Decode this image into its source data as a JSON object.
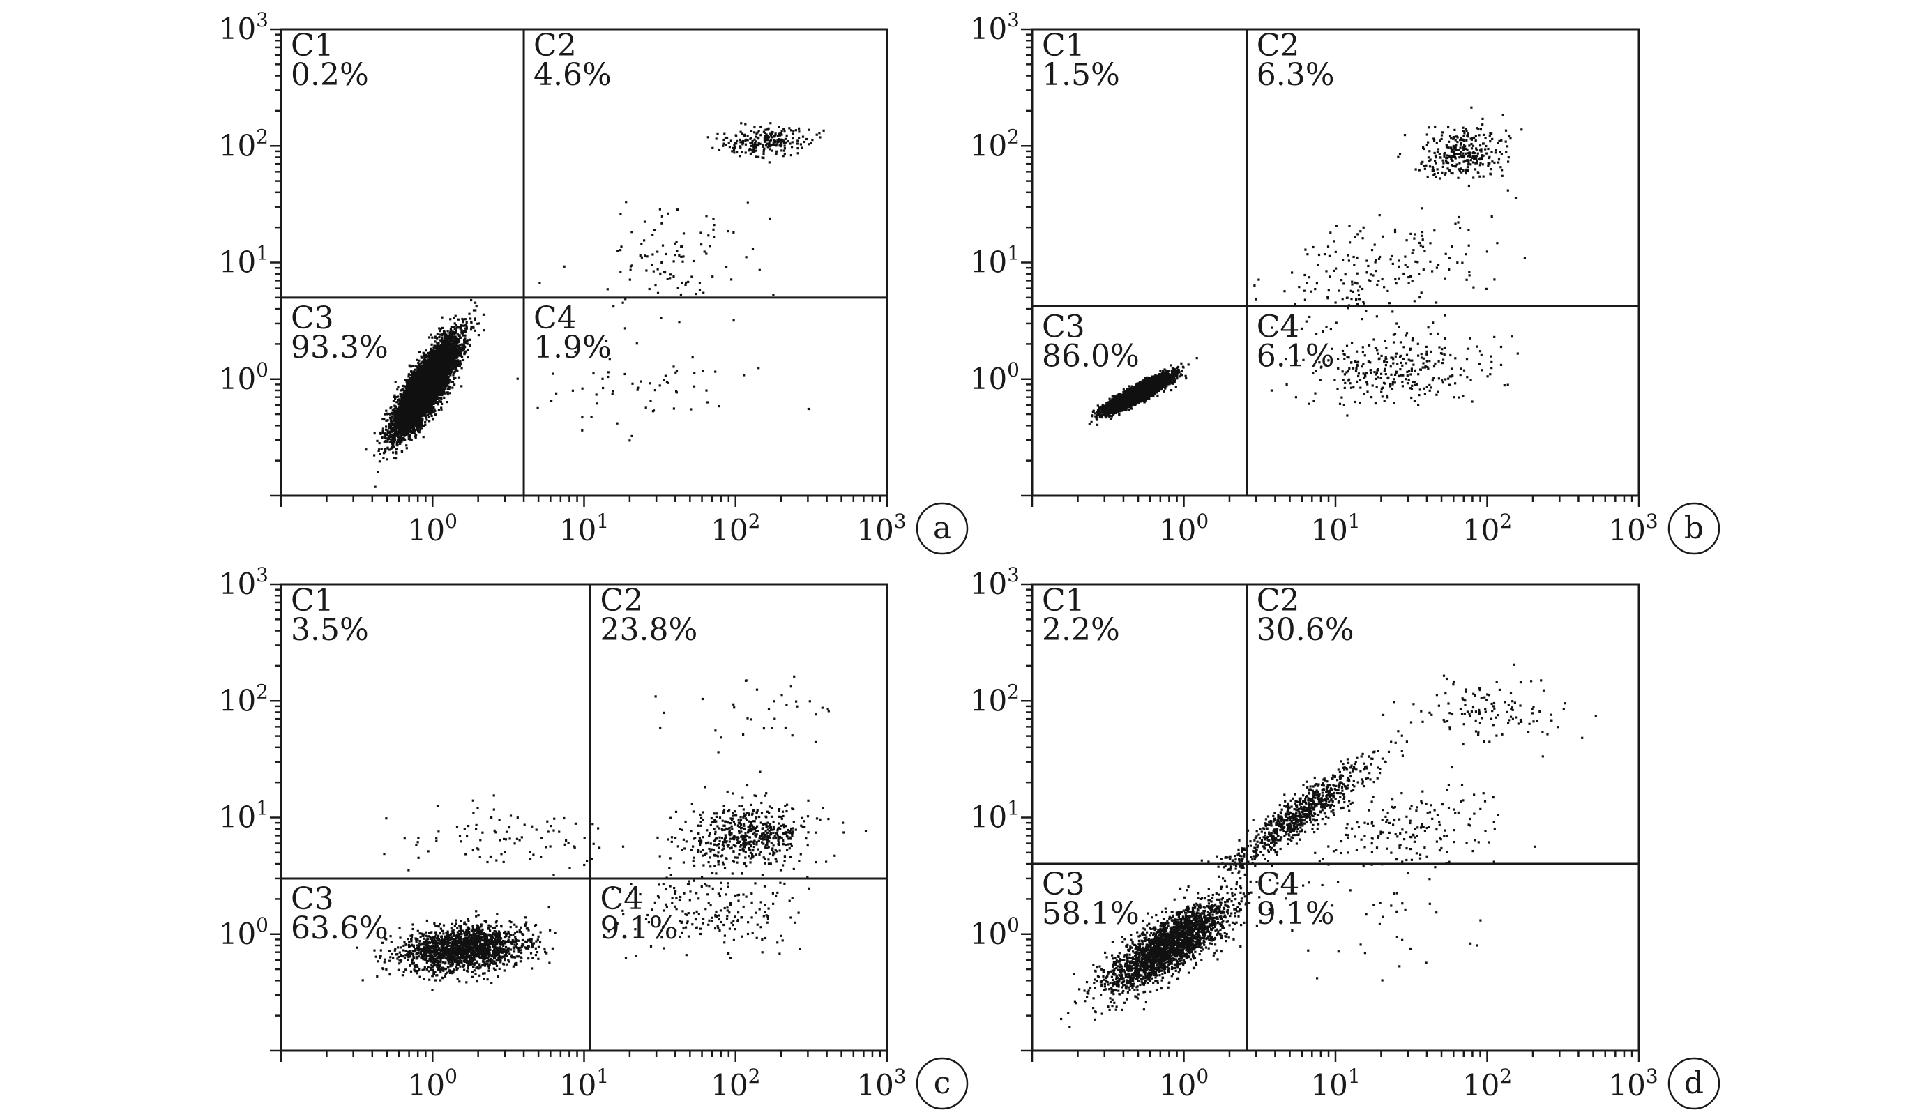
{
  "chart_data": [
    {
      "type": "scatter",
      "panel_label": "a",
      "x_scale": "log",
      "y_scale": "log",
      "xlim": [
        0.1,
        1000
      ],
      "ylim": [
        0.1,
        1000
      ],
      "x_ticks": [
        1,
        10,
        100,
        1000
      ],
      "y_ticks": [
        1,
        10,
        100,
        1000
      ],
      "tick_base": "10",
      "tick_exponents": [
        "0",
        "1",
        "2",
        "3"
      ],
      "gate": {
        "x": 4,
        "y": 5
      },
      "quadrants": [
        {
          "name": "C1",
          "percent": "0.2%"
        },
        {
          "name": "C2",
          "percent": "4.6%"
        },
        {
          "name": "C3",
          "percent": "93.3%"
        },
        {
          "name": "C4",
          "percent": "1.9%"
        }
      ],
      "populations": [
        {
          "cx": 0.9,
          "cy": 0.85,
          "sx": 0.8,
          "sy": 0.65,
          "rho": 0.82,
          "count": 9000
        },
        {
          "cx": 150,
          "cy": 110,
          "sx": 1.4,
          "sy": 1.15,
          "rho": 0.05,
          "count": 230
        },
        {
          "cx": 40,
          "cy": 10,
          "sx": 1.9,
          "sy": 1.8,
          "rho": 0.3,
          "count": 100
        },
        {
          "cx": 25,
          "cy": 0.9,
          "sx": 2.2,
          "sy": 1.6,
          "rho": 0.0,
          "count": 60
        }
      ]
    },
    {
      "type": "scatter",
      "panel_label": "b",
      "x_scale": "log",
      "y_scale": "log",
      "xlim": [
        0.1,
        1000
      ],
      "ylim": [
        0.1,
        1000
      ],
      "x_ticks": [
        1,
        10,
        100,
        1000
      ],
      "y_ticks": [
        1,
        10,
        100,
        1000
      ],
      "tick_base": "10",
      "tick_exponents": [
        "0",
        "1",
        "2",
        "3"
      ],
      "gate": {
        "x": 2.6,
        "y": 4.2
      },
      "quadrants": [
        {
          "name": "C1",
          "percent": "1.5%"
        },
        {
          "name": "C2",
          "percent": "6.3%"
        },
        {
          "name": "C3",
          "percent": "86.0%"
        },
        {
          "name": "C4",
          "percent": "6.1%"
        }
      ],
      "populations": [
        {
          "cx": 0.5,
          "cy": 0.75,
          "sx": 0.8,
          "sy": 0.85,
          "rho": 0.9,
          "count": 6800
        },
        {
          "cx": 70,
          "cy": 85,
          "sx": 1.4,
          "sy": 1.3,
          "rho": 0.05,
          "count": 300
        },
        {
          "cx": 20,
          "cy": 9,
          "sx": 2.2,
          "sy": 1.7,
          "rho": 0.3,
          "count": 180
        },
        {
          "cx": 25,
          "cy": 1.2,
          "sx": 1.9,
          "sy": 1.45,
          "rho": 0.1,
          "count": 300
        }
      ]
    },
    {
      "type": "scatter",
      "panel_label": "c",
      "x_scale": "log",
      "y_scale": "log",
      "xlim": [
        0.1,
        1000
      ],
      "ylim": [
        0.1,
        1000
      ],
      "x_ticks": [
        1,
        10,
        100,
        1000
      ],
      "y_ticks": [
        1,
        10,
        100,
        1000
      ],
      "tick_base": "10",
      "tick_exponents": [
        "0",
        "1",
        "2",
        "3"
      ],
      "gate": {
        "x": 11,
        "y": 3
      },
      "quadrants": [
        {
          "name": "C1",
          "percent": "3.5%"
        },
        {
          "name": "C2",
          "percent": "23.8%"
        },
        {
          "name": "C3",
          "percent": "63.6%"
        },
        {
          "name": "C4",
          "percent": "9.1%"
        }
      ],
      "populations": [
        {
          "cx": 1.6,
          "cy": 0.75,
          "sx": 1.6,
          "sy": 1.25,
          "rho": 0.2,
          "count": 1800
        },
        {
          "cx": 120,
          "cy": 7,
          "sx": 1.6,
          "sy": 1.35,
          "rho": 0.1,
          "count": 550
        },
        {
          "cx": 70,
          "cy": 1.6,
          "sx": 2.0,
          "sy": 1.5,
          "rho": 0.1,
          "count": 200
        },
        {
          "cx": 3,
          "cy": 6,
          "sx": 2.2,
          "sy": 1.4,
          "rho": 0.0,
          "count": 90
        },
        {
          "cx": 150,
          "cy": 80,
          "sx": 2.2,
          "sy": 1.5,
          "rho": 0.0,
          "count": 35
        }
      ]
    },
    {
      "type": "scatter",
      "panel_label": "d",
      "x_scale": "log",
      "y_scale": "log",
      "xlim": [
        0.1,
        1000
      ],
      "ylim": [
        0.1,
        1000
      ],
      "x_ticks": [
        1,
        10,
        100,
        1000
      ],
      "y_ticks": [
        1,
        10,
        100,
        1000
      ],
      "tick_base": "10",
      "tick_exponents": [
        "0",
        "1",
        "2",
        "3"
      ],
      "gate": {
        "x": 2.6,
        "y": 4
      },
      "quadrants": [
        {
          "name": "C1",
          "percent": "2.2%"
        },
        {
          "name": "C2",
          "percent": "30.6%"
        },
        {
          "name": "C3",
          "percent": "58.1%"
        },
        {
          "name": "C4",
          "percent": "9.1%"
        }
      ],
      "populations": [
        {
          "cx": 0.8,
          "cy": 0.8,
          "sx": 1.6,
          "sy": 1.55,
          "rho": 0.78,
          "count": 2400
        },
        {
          "cx": 5.5,
          "cy": 10,
          "sx": 1.7,
          "sy": 1.7,
          "rho": 0.92,
          "count": 800
        },
        {
          "cx": 30,
          "cy": 8,
          "sx": 2.0,
          "sy": 1.5,
          "rho": 0.2,
          "count": 170
        },
        {
          "cx": 100,
          "cy": 80,
          "sx": 1.9,
          "sy": 1.4,
          "rho": 0.0,
          "count": 120
        },
        {
          "cx": 12,
          "cy": 1.2,
          "sx": 2.4,
          "sy": 1.7,
          "rho": 0.0,
          "count": 40
        }
      ]
    }
  ]
}
